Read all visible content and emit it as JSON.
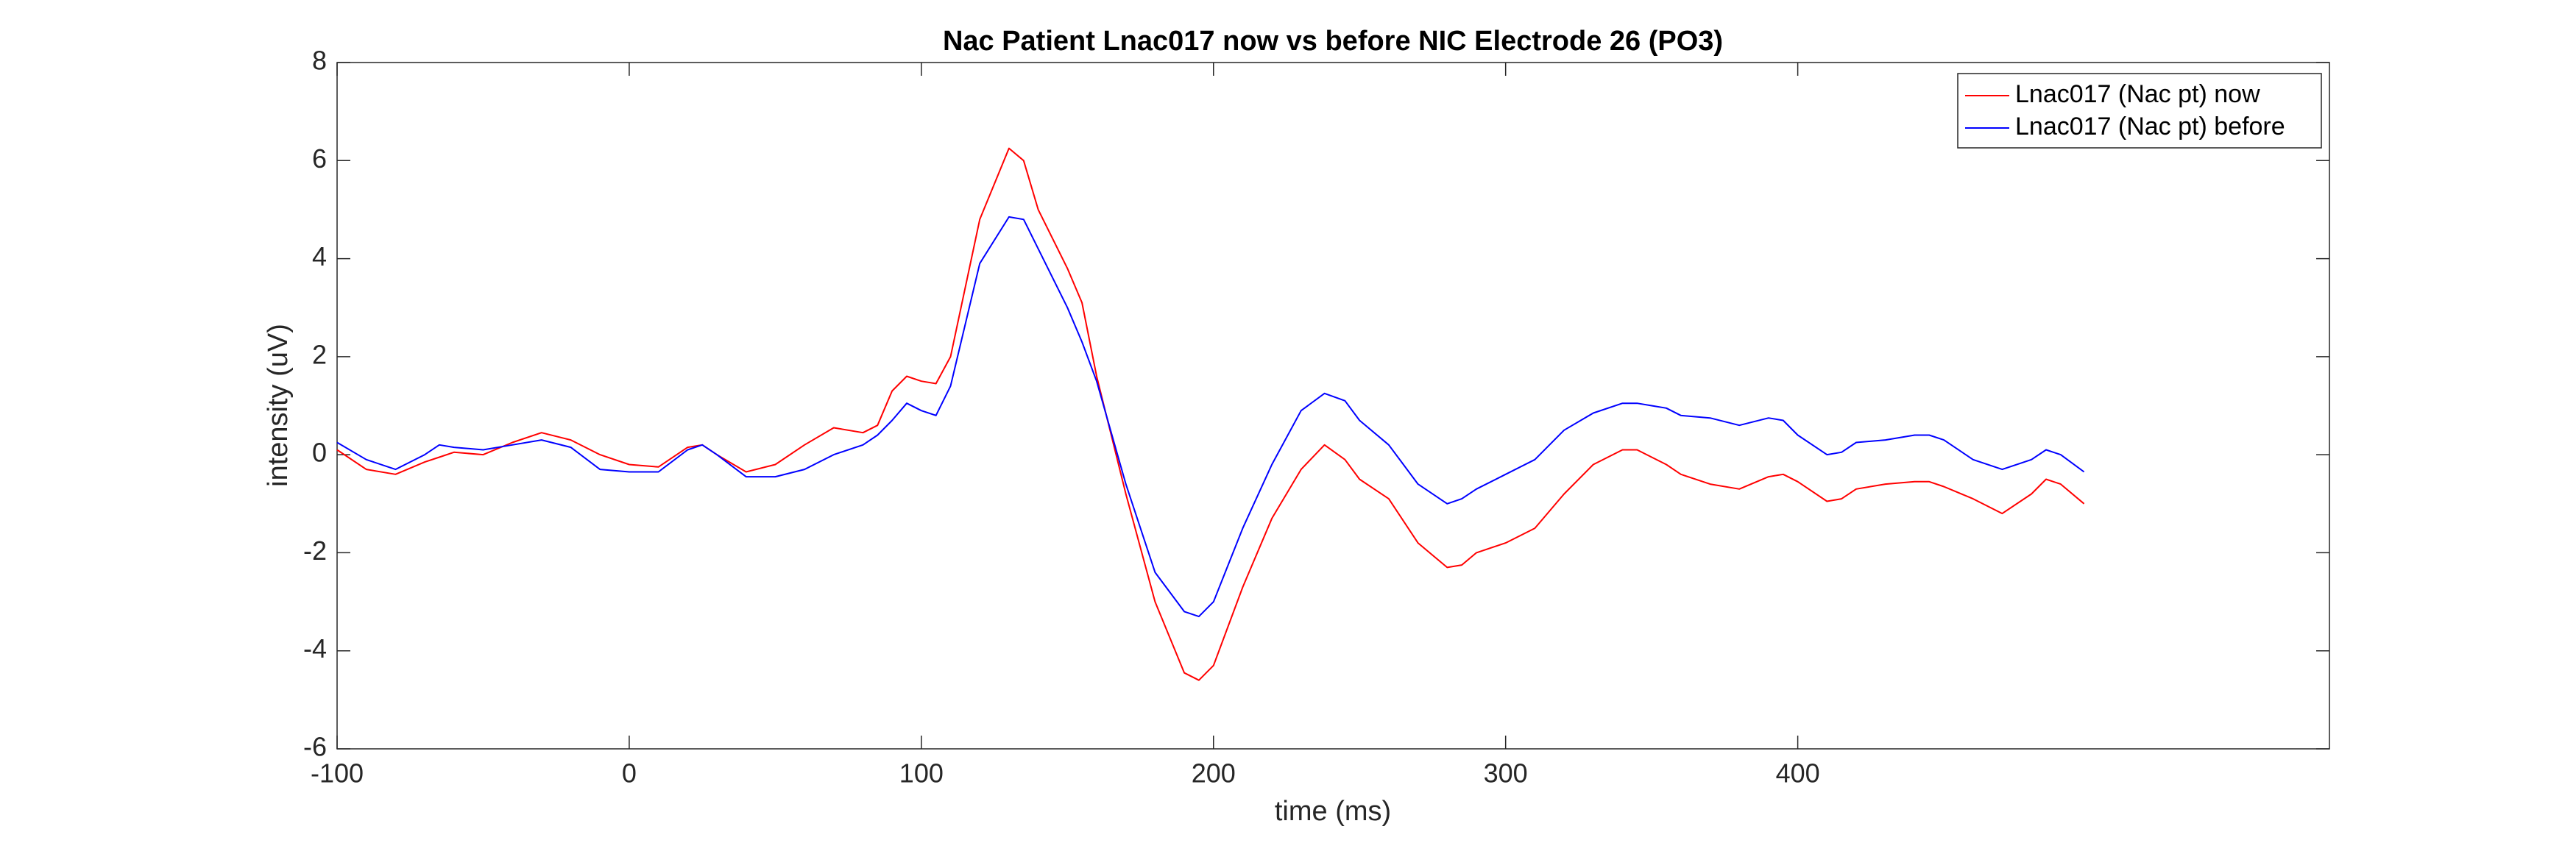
{
  "chart_data": {
    "type": "line",
    "title": "Nac Patient Lnac017 now vs before NIC Electrode 26 (PO3)",
    "x_label": "time (ms)",
    "y_label": "intensity (uV)",
    "x": [
      -100,
      -90,
      -80,
      -70,
      -65,
      -60,
      -50,
      -40,
      -30,
      -20,
      -10,
      0,
      10,
      20,
      25,
      30,
      40,
      50,
      60,
      70,
      80,
      85,
      90,
      95,
      100,
      105,
      110,
      120,
      130,
      135,
      140,
      150,
      155,
      160,
      170,
      180,
      190,
      195,
      200,
      210,
      220,
      230,
      238,
      245,
      250,
      260,
      270,
      280,
      285,
      290,
      300,
      310,
      320,
      330,
      340,
      345,
      350,
      355,
      360,
      370,
      380,
      390,
      395,
      400,
      410,
      415,
      420,
      430,
      440,
      445,
      450,
      460,
      470,
      480,
      485,
      490,
      498
    ],
    "series": [
      {
        "name": "Lnac017 (Nac pt) now",
        "color": "#ff0000",
        "values": [
          0.1,
          -0.3,
          -0.4,
          -0.15,
          -0.05,
          0.05,
          0.0,
          0.25,
          0.45,
          0.3,
          0.0,
          -0.2,
          -0.25,
          0.15,
          0.2,
          0.0,
          -0.35,
          -0.2,
          0.2,
          0.55,
          0.45,
          0.6,
          1.3,
          1.6,
          1.5,
          1.45,
          2.0,
          4.8,
          6.25,
          6.0,
          5.0,
          3.8,
          3.1,
          1.6,
          -0.8,
          -3.0,
          -4.45,
          -4.6,
          -4.3,
          -2.7,
          -1.3,
          -0.3,
          0.2,
          -0.1,
          -0.5,
          -0.9,
          -1.8,
          -2.3,
          -2.25,
          -2.0,
          -1.8,
          -1.5,
          -0.8,
          -0.2,
          0.1,
          0.1,
          -0.05,
          -0.2,
          -0.4,
          -0.6,
          -0.7,
          -0.45,
          -0.4,
          -0.55,
          -0.95,
          -0.9,
          -0.7,
          -0.6,
          -0.55,
          -0.55,
          -0.65,
          -0.9,
          -1.2,
          -0.8,
          -0.5,
          -0.6,
          -1.0
        ]
      },
      {
        "name": "Lnac017 (Nac pt) before",
        "color": "#0000ff",
        "values": [
          0.25,
          -0.1,
          -0.3,
          0.0,
          0.2,
          0.15,
          0.1,
          0.2,
          0.3,
          0.15,
          -0.3,
          -0.35,
          -0.35,
          0.1,
          0.2,
          0.0,
          -0.45,
          -0.45,
          -0.3,
          0.0,
          0.2,
          0.4,
          0.7,
          1.05,
          0.9,
          0.8,
          1.4,
          3.9,
          4.85,
          4.8,
          4.2,
          3.0,
          2.3,
          1.5,
          -0.6,
          -2.4,
          -3.2,
          -3.3,
          -3.0,
          -1.5,
          -0.2,
          0.9,
          1.25,
          1.1,
          0.7,
          0.2,
          -0.6,
          -1.0,
          -0.9,
          -0.7,
          -0.4,
          -0.1,
          0.5,
          0.85,
          1.05,
          1.05,
          1.0,
          0.95,
          0.8,
          0.75,
          0.6,
          0.75,
          0.7,
          0.4,
          0.0,
          0.05,
          0.25,
          0.3,
          0.4,
          0.4,
          0.3,
          -0.1,
          -0.3,
          -0.1,
          0.1,
          0.0,
          -0.35
        ]
      }
    ],
    "xlim": [
      -100,
      582
    ],
    "xticks": [
      -100,
      0,
      100,
      200,
      300,
      400
    ],
    "ylim": [
      -6,
      8
    ],
    "yticks": [
      -6,
      -4,
      -2,
      0,
      2,
      4,
      6,
      8
    ],
    "grid": false,
    "legend": "northeast"
  }
}
